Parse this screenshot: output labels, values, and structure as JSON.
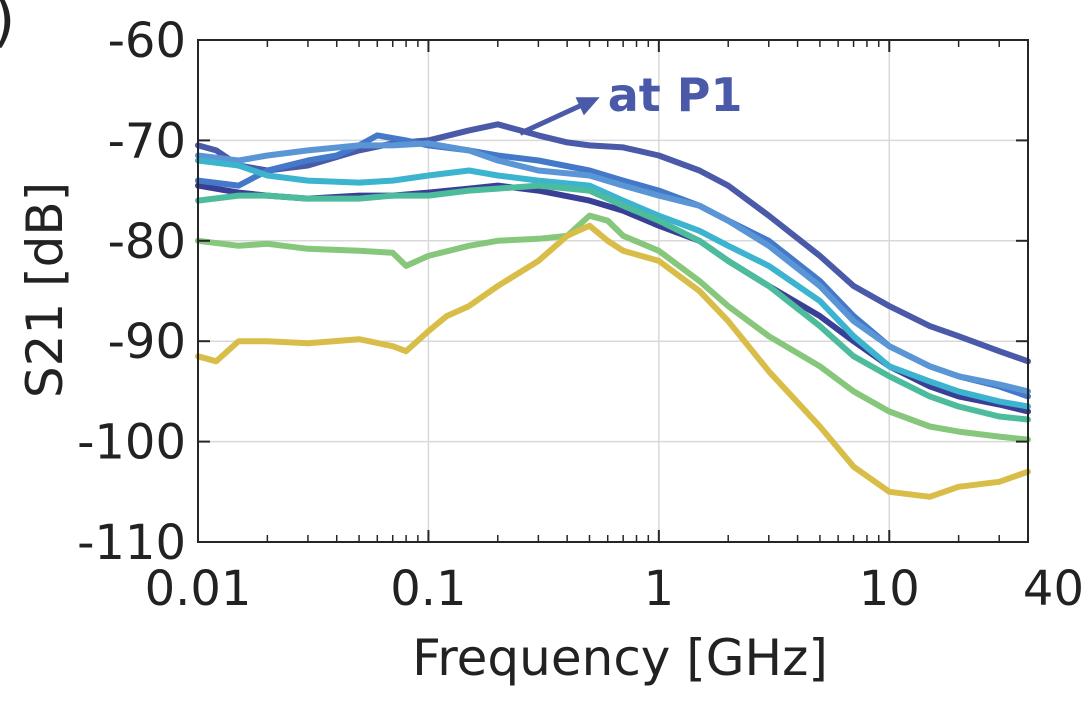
{
  "panel_label": ")",
  "chart_data": {
    "type": "line",
    "title": "",
    "xlabel": "Frequency [GHz]",
    "ylabel": "S21 [dB]",
    "xscale": "log",
    "xlim": [
      0.01,
      40
    ],
    "ylim": [
      -110,
      -60
    ],
    "grid": true,
    "legend": "none",
    "x_ticks": [
      {
        "value": 0.01,
        "label": "0.01"
      },
      {
        "value": 0.1,
        "label": "0.1"
      },
      {
        "value": 1,
        "label": "1"
      },
      {
        "value": 10,
        "label": "10"
      },
      {
        "value": 40,
        "label": "40"
      }
    ],
    "y_ticks": [
      {
        "value": -60,
        "label": "-60"
      },
      {
        "value": -70,
        "label": "-70"
      },
      {
        "value": -80,
        "label": "-80"
      },
      {
        "value": -90,
        "label": "-90"
      },
      {
        "value": -100,
        "label": "-100"
      },
      {
        "value": -110,
        "label": "-110"
      }
    ],
    "annotation": {
      "text": "at P1",
      "color": "#4a5aa8",
      "x": 0.6,
      "y": -65.5,
      "arrow_from": [
        0.25,
        -69.3
      ]
    },
    "series": [
      {
        "color": "#4a5aa8",
        "x": [
          0.01,
          0.012,
          0.015,
          0.02,
          0.03,
          0.05,
          0.07,
          0.1,
          0.15,
          0.2,
          0.25,
          0.3,
          0.4,
          0.5,
          0.7,
          1,
          1.5,
          2,
          3,
          5,
          7,
          10,
          15,
          20,
          30,
          40
        ],
        "y": [
          -70.5,
          -71,
          -72.5,
          -73,
          -72.5,
          -71,
          -70.3,
          -70,
          -69,
          -68.4,
          -69,
          -69.5,
          -70.2,
          -70.5,
          -70.7,
          -71.5,
          -73,
          -74.5,
          -77.5,
          -81.5,
          -84.5,
          -86.5,
          -88.5,
          -89.5,
          -91,
          -92
        ]
      },
      {
        "color": "#3a3f96",
        "x": [
          0.01,
          0.015,
          0.02,
          0.03,
          0.05,
          0.07,
          0.1,
          0.15,
          0.2,
          0.3,
          0.5,
          0.7,
          1,
          1.5,
          2,
          3,
          5,
          7,
          10,
          15,
          20,
          30,
          40
        ],
        "y": [
          -74.5,
          -75.2,
          -75.5,
          -75.8,
          -75.5,
          -75.5,
          -75.2,
          -74.8,
          -74.5,
          -75,
          -76,
          -77,
          -78.5,
          -80,
          -82,
          -84.5,
          -87.5,
          -90,
          -92.5,
          -94.5,
          -95.5,
          -96.3,
          -97
        ]
      },
      {
        "color": "#4478c8",
        "x": [
          0.01,
          0.015,
          0.02,
          0.03,
          0.04,
          0.05,
          0.06,
          0.08,
          0.1,
          0.15,
          0.2,
          0.3,
          0.5,
          0.7,
          1,
          1.5,
          2,
          3,
          5,
          7,
          10,
          15,
          20,
          30,
          40
        ],
        "y": [
          -74,
          -74.5,
          -73,
          -72,
          -71.5,
          -70.5,
          -69.5,
          -70,
          -70.5,
          -71,
          -71.5,
          -72,
          -73,
          -74,
          -75,
          -76.5,
          -78,
          -80,
          -84,
          -87.5,
          -90.5,
          -92.5,
          -93.5,
          -94.5,
          -95.5
        ]
      },
      {
        "color": "#5a96d6",
        "x": [
          0.01,
          0.015,
          0.02,
          0.03,
          0.05,
          0.07,
          0.1,
          0.15,
          0.2,
          0.3,
          0.5,
          0.7,
          1,
          1.5,
          2,
          3,
          5,
          7,
          10,
          15,
          20,
          30,
          40
        ],
        "y": [
          -71.5,
          -72,
          -71.5,
          -71,
          -70.5,
          -70.5,
          -70.3,
          -71,
          -72,
          -73,
          -73.5,
          -74.5,
          -75.5,
          -76.5,
          -78,
          -80.5,
          -84.5,
          -88,
          -90.5,
          -92.5,
          -93.5,
          -94.3,
          -95
        ]
      },
      {
        "color": "#3db4cf",
        "x": [
          0.01,
          0.015,
          0.02,
          0.03,
          0.05,
          0.07,
          0.1,
          0.15,
          0.2,
          0.3,
          0.5,
          0.7,
          1,
          1.5,
          2,
          3,
          5,
          7,
          10,
          15,
          20,
          30,
          40
        ],
        "y": [
          -72,
          -72.5,
          -73.5,
          -74,
          -74.2,
          -74,
          -73.5,
          -73,
          -73.5,
          -74,
          -74.5,
          -76,
          -77.5,
          -79,
          -80.5,
          -82.5,
          -86,
          -89.5,
          -92.5,
          -94,
          -95,
          -96,
          -96.5
        ]
      },
      {
        "color": "#4dbc9c",
        "x": [
          0.01,
          0.015,
          0.02,
          0.03,
          0.05,
          0.07,
          0.1,
          0.15,
          0.2,
          0.3,
          0.5,
          0.7,
          1,
          1.5,
          2,
          3,
          5,
          7,
          10,
          15,
          20,
          30,
          40
        ],
        "y": [
          -76,
          -75.5,
          -75.5,
          -75.8,
          -75.8,
          -75.5,
          -75.5,
          -75,
          -74.8,
          -74.5,
          -75,
          -76.5,
          -78,
          -80,
          -82,
          -84.5,
          -88.5,
          -91.5,
          -93.5,
          -95.5,
          -96.5,
          -97.5,
          -97.8
        ]
      },
      {
        "color": "#86c77c",
        "x": [
          0.01,
          0.015,
          0.02,
          0.03,
          0.05,
          0.07,
          0.08,
          0.1,
          0.15,
          0.2,
          0.3,
          0.4,
          0.5,
          0.6,
          0.7,
          1,
          1.5,
          2,
          3,
          5,
          7,
          10,
          15,
          20,
          30,
          40
        ],
        "y": [
          -80,
          -80.5,
          -80.3,
          -80.8,
          -81,
          -81.2,
          -82.5,
          -81.5,
          -80.5,
          -80,
          -79.8,
          -79.5,
          -77.5,
          -78,
          -79.5,
          -81,
          -84,
          -86.5,
          -89.5,
          -92.5,
          -95,
          -97,
          -98.5,
          -99,
          -99.5,
          -99.8
        ]
      },
      {
        "color": "#d8be48",
        "x": [
          0.01,
          0.012,
          0.015,
          0.02,
          0.03,
          0.05,
          0.07,
          0.08,
          0.1,
          0.12,
          0.15,
          0.2,
          0.3,
          0.4,
          0.5,
          0.6,
          0.7,
          1,
          1.5,
          2,
          3,
          5,
          7,
          10,
          15,
          20,
          30,
          40
        ],
        "y": [
          -91.5,
          -92,
          -90,
          -90,
          -90.2,
          -89.8,
          -90.5,
          -91,
          -89,
          -87.5,
          -86.5,
          -84.5,
          -82,
          -79.5,
          -78.5,
          -80,
          -81,
          -82,
          -85,
          -88,
          -93,
          -98.5,
          -102.5,
          -105,
          -105.5,
          -104.5,
          -104,
          -103
        ]
      }
    ]
  }
}
